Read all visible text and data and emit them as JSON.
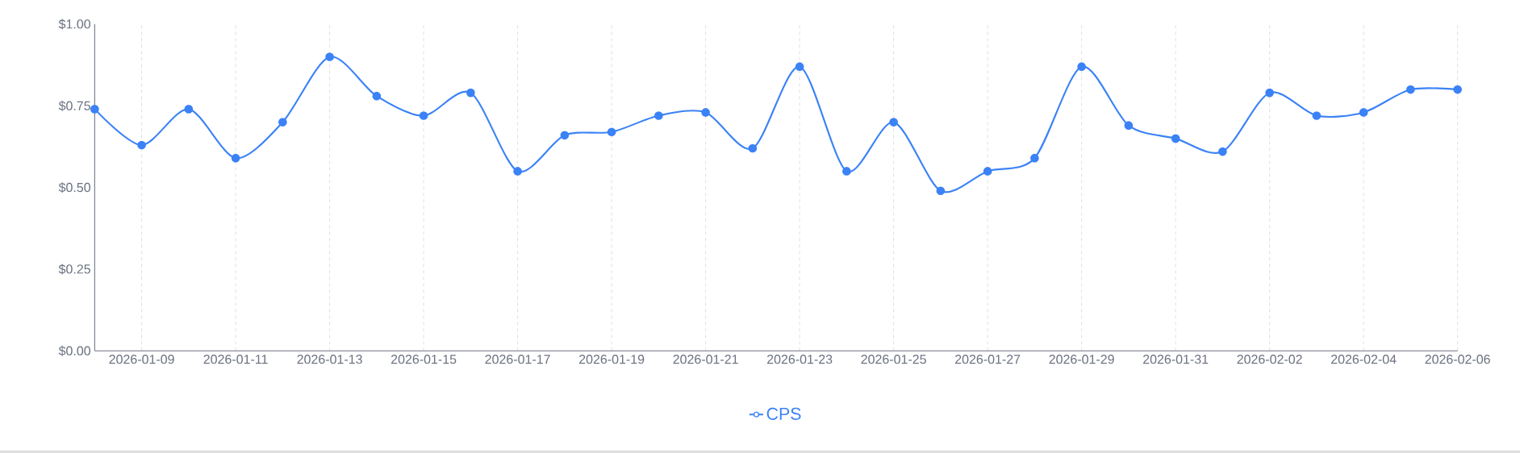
{
  "chart_data": {
    "type": "line",
    "x": [
      "2026-01-08",
      "2026-01-09",
      "2026-01-10",
      "2026-01-11",
      "2026-01-12",
      "2026-01-13",
      "2026-01-14",
      "2026-01-15",
      "2026-01-16",
      "2026-01-17",
      "2026-01-18",
      "2026-01-19",
      "2026-01-20",
      "2026-01-21",
      "2026-01-22",
      "2026-01-23",
      "2026-01-24",
      "2026-01-25",
      "2026-01-26",
      "2026-01-27",
      "2026-01-28",
      "2026-01-29",
      "2026-01-30",
      "2026-01-31",
      "2026-02-01",
      "2026-02-02",
      "2026-02-03",
      "2026-02-04",
      "2026-02-05",
      "2026-02-06"
    ],
    "series": [
      {
        "name": "CPS",
        "color": "#3b82f6",
        "values": [
          0.74,
          0.63,
          0.74,
          0.59,
          0.7,
          0.9,
          0.78,
          0.72,
          0.79,
          0.55,
          0.66,
          0.67,
          0.72,
          0.73,
          0.62,
          0.87,
          0.55,
          0.7,
          0.49,
          0.55,
          0.59,
          0.87,
          0.69,
          0.65,
          0.61,
          0.79,
          0.72,
          0.73,
          0.8,
          0.8
        ]
      }
    ],
    "xlim": [
      "2026-01-08",
      "2026-02-06"
    ],
    "xticks": [
      "2026-01-09",
      "2026-01-11",
      "2026-01-13",
      "2026-01-15",
      "2026-01-17",
      "2026-01-19",
      "2026-01-21",
      "2026-01-23",
      "2026-01-25",
      "2026-01-27",
      "2026-01-29",
      "2026-01-31",
      "2026-02-02",
      "2026-02-04",
      "2026-02-06"
    ],
    "ylim": [
      0,
      1
    ],
    "yticks": [
      {
        "value": 0,
        "label": "$0.00"
      },
      {
        "value": 0.25,
        "label": "$0.25"
      },
      {
        "value": 0.5,
        "label": "$0.50"
      },
      {
        "value": 0.75,
        "label": "$0.75"
      },
      {
        "value": 1,
        "label": "$1.00"
      }
    ],
    "grid": "x",
    "legend": "bottom",
    "marker": "circle",
    "line_style": "solid"
  }
}
